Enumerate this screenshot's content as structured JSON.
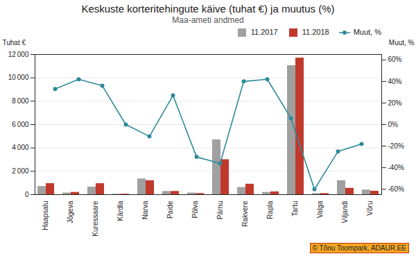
{
  "chart_data": {
    "type": "bar",
    "title": "Keskuste korteritehingute käive (tuhat €) ja muutus (%)",
    "subtitle": "Maa-ameti andmed",
    "ylabel": "Tuhat €",
    "y2label": "Muut, %",
    "caption": "© Tõnu Toompark, ADAUR.EE",
    "categories": [
      "Haapsalu",
      "Jõgeva",
      "Kuressaare",
      "Kärdla",
      "Narva",
      "Paide",
      "Põlva",
      "Pärnu",
      "Rakvere",
      "Rapla",
      "Tartu",
      "Valga",
      "Viljandi",
      "Võru"
    ],
    "series": [
      {
        "name": "11.2017",
        "color": "#a0a0a0",
        "values": [
          700,
          150,
          650,
          50,
          1350,
          280,
          150,
          4700,
          620,
          200,
          11050,
          100,
          1200,
          400
        ]
      },
      {
        "name": "11.2018",
        "color": "#c0392b",
        "values": [
          950,
          200,
          950,
          50,
          1200,
          280,
          100,
          3000,
          900,
          250,
          11700,
          100,
          550,
          300
        ]
      },
      {
        "name": "Muut, %",
        "type": "line",
        "axis": "y2",
        "color": "#2E8B9A",
        "marker": "circle",
        "values": [
          33,
          42,
          36,
          0,
          -11,
          27,
          -30,
          -36,
          40,
          42,
          6,
          -60,
          -25,
          -18
        ]
      }
    ],
    "ylim": [
      0,
      12000
    ],
    "yticks": [
      0,
      {
        "value": 2000,
        "label": "2 000"
      },
      {
        "value": 4000,
        "label": "4 000"
      },
      {
        "value": 6000,
        "label": "6 000"
      },
      {
        "value": 8000,
        "label": "8 000"
      },
      {
        "value": 10000,
        "label": "10 000"
      },
      {
        "value": 12000,
        "label": "12 000"
      }
    ],
    "y2lim": [
      -65,
      65
    ],
    "y2ticks": [
      {
        "value": -60,
        "label": "-60%"
      },
      {
        "value": -40,
        "label": "-40%"
      },
      {
        "value": -20,
        "label": "-20%"
      },
      {
        "value": 0,
        "label": "0%"
      },
      {
        "value": 20,
        "label": "20%"
      },
      {
        "value": 40,
        "label": "40%"
      },
      {
        "value": 60,
        "label": "60%"
      }
    ],
    "grid": true,
    "legend": "upper right"
  }
}
